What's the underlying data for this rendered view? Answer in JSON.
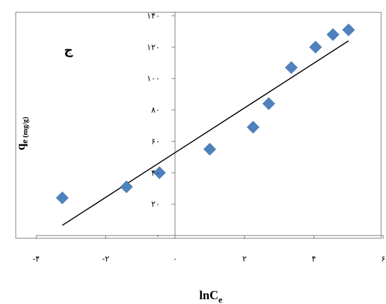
{
  "chart_data": {
    "type": "scatter",
    "panel_label": "ج",
    "xlabel": {
      "main": "lnC",
      "sub": "e"
    },
    "ylabel": {
      "main": "q",
      "sub": "e",
      "unit": " (mg/g)"
    },
    "xlim": [
      -4,
      6
    ],
    "ylim": [
      0,
      140
    ],
    "x_ticks": [
      {
        "value": -4,
        "label": "-۴"
      },
      {
        "value": -2,
        "label": "-۲"
      },
      {
        "value": 0,
        "label": "۰"
      },
      {
        "value": 2,
        "label": "۲"
      },
      {
        "value": 4,
        "label": "۴"
      },
      {
        "value": 6,
        "label": "۶"
      }
    ],
    "y_ticks": [
      {
        "value": 0,
        "label": "۰"
      },
      {
        "value": 20,
        "label": "۲۰"
      },
      {
        "value": 40,
        "label": "۴۰"
      },
      {
        "value": 60,
        "label": "۶۰"
      },
      {
        "value": 80,
        "label": "۸۰"
      },
      {
        "value": 100,
        "label": "۱۰۰"
      },
      {
        "value": 120,
        "label": "۱۲۰"
      },
      {
        "value": 140,
        "label": "۱۴۰"
      }
    ],
    "series": [
      {
        "marker": "diamond",
        "color": "#4F81BD",
        "points": [
          {
            "x": -3.25,
            "y": 24
          },
          {
            "x": -1.4,
            "y": 31
          },
          {
            "x": -0.45,
            "y": 40
          },
          {
            "x": 1.0,
            "y": 55
          },
          {
            "x": 2.25,
            "y": 69
          },
          {
            "x": 2.7,
            "y": 84
          },
          {
            "x": 3.35,
            "y": 107
          },
          {
            "x": 4.05,
            "y": 120
          },
          {
            "x": 4.55,
            "y": 128
          },
          {
            "x": 5.0,
            "y": 131
          }
        ]
      }
    ],
    "trendline": {
      "type": "linear",
      "color": "#000000",
      "x_start": -3.25,
      "x_end": 5.0,
      "y_start": 6.5,
      "y_end": 124
    },
    "grid": false
  }
}
